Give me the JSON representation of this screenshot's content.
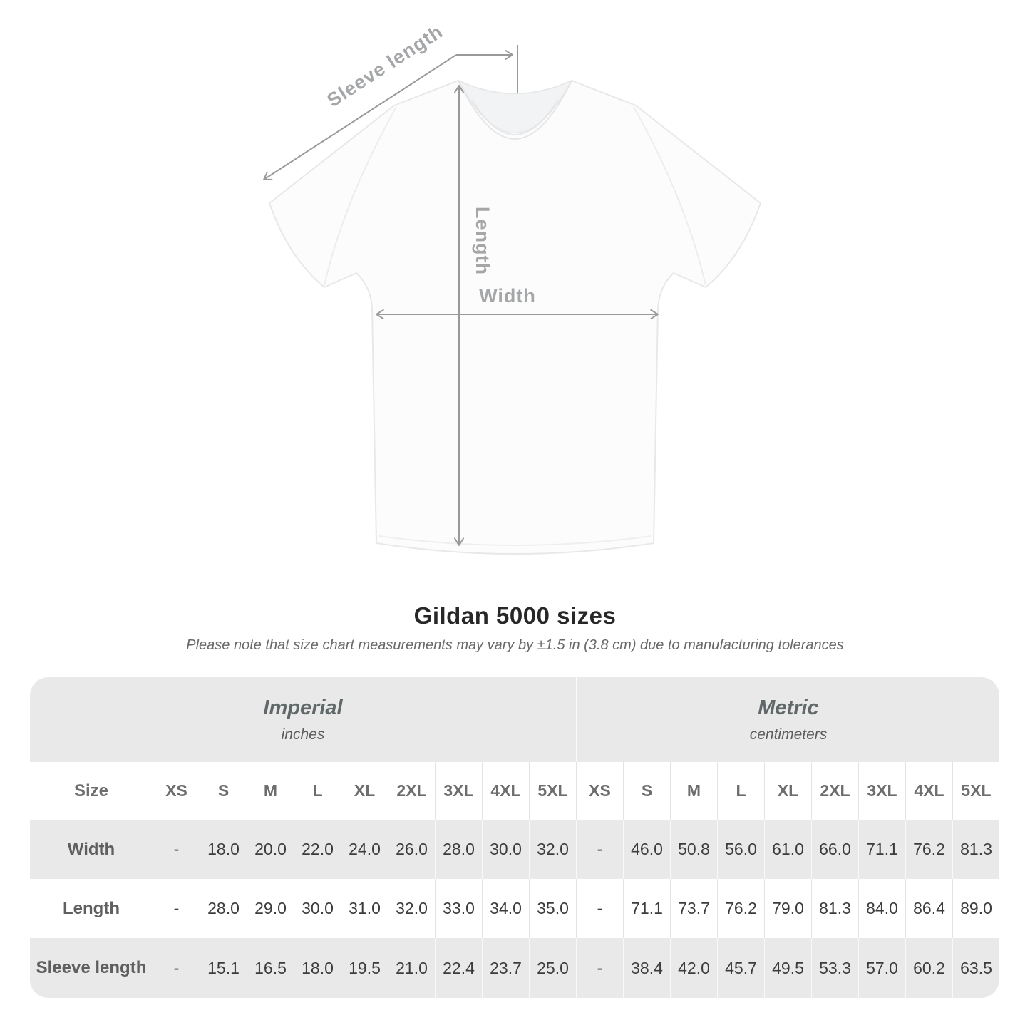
{
  "figure": {
    "labels": {
      "sleeve_length": "Sleeve length",
      "length": "Length",
      "width": "Width"
    }
  },
  "title": "Gildan 5000 sizes",
  "subtitle": "Please note that size chart measurements may vary by ±1.5 in (3.8 cm) due to manufacturing tolerances",
  "table": {
    "size_col_header": "Size",
    "unit_groups": [
      {
        "name": "Imperial",
        "unit": "inches"
      },
      {
        "name": "Metric",
        "unit": "centimeters"
      }
    ],
    "sizes": [
      "XS",
      "S",
      "M",
      "L",
      "XL",
      "2XL",
      "3XL",
      "4XL",
      "5XL"
    ],
    "rows": [
      {
        "label": "Width",
        "imperial": [
          "-",
          "18.0",
          "20.0",
          "22.0",
          "24.0",
          "26.0",
          "28.0",
          "30.0",
          "32.0"
        ],
        "metric": [
          "-",
          "46.0",
          "50.8",
          "56.0",
          "61.0",
          "66.0",
          "71.1",
          "76.2",
          "81.3"
        ]
      },
      {
        "label": "Length",
        "imperial": [
          "-",
          "28.0",
          "29.0",
          "30.0",
          "31.0",
          "32.0",
          "33.0",
          "34.0",
          "35.0"
        ],
        "metric": [
          "-",
          "71.1",
          "73.7",
          "76.2",
          "79.0",
          "81.3",
          "84.0",
          "86.4",
          "89.0"
        ]
      },
      {
        "label": "Sleeve length",
        "imperial": [
          "-",
          "15.1",
          "16.5",
          "18.0",
          "19.5",
          "21.0",
          "22.4",
          "23.7",
          "25.0"
        ],
        "metric": [
          "-",
          "38.4",
          "42.0",
          "45.7",
          "49.5",
          "53.3",
          "57.0",
          "60.2",
          "63.5"
        ]
      }
    ]
  },
  "colors": {
    "row_stripe": "#e9e9e9",
    "annotation_line": "#97999b",
    "annotation_label": "#a4a6a8",
    "value_text": "#3c3c3c",
    "header_text": "#6d6d6d"
  }
}
